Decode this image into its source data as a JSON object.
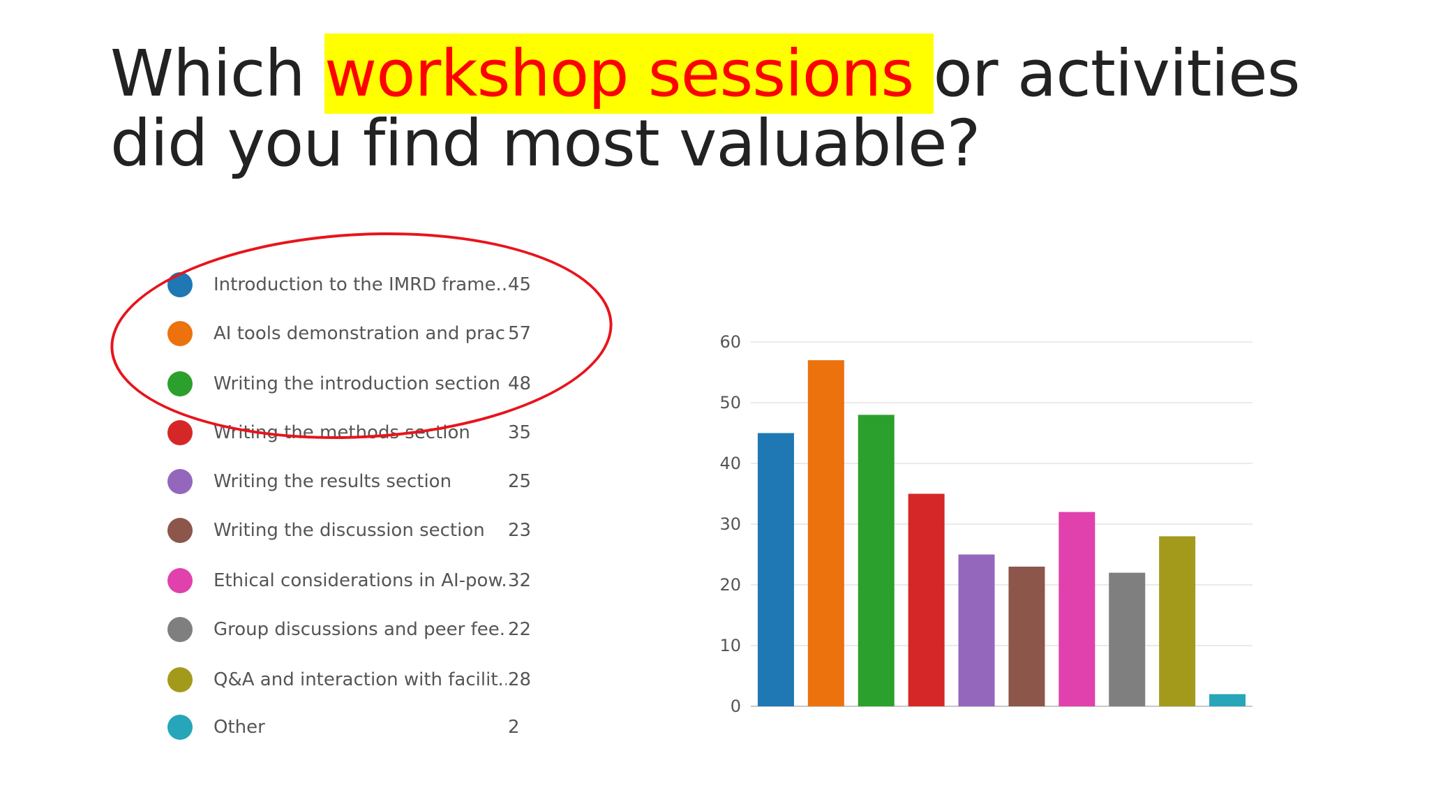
{
  "title": {
    "before": "Which ",
    "highlight": "workshop sessions ",
    "after": "or activities did you find most valuable?"
  },
  "colors": {
    "highlight_bg": "#ffff00",
    "highlight_text": "#ff0000",
    "annotation": "#e8141b"
  },
  "chart_data": {
    "type": "bar",
    "categories": [
      "Introduction to the IMRD frame...",
      "AI tools demonstration and prac...",
      "Writing the introduction section",
      "Writing the methods section",
      "Writing the results section",
      "Writing the discussion section",
      "Ethical considerations in AI-pow...",
      "Group discussions and peer fee...",
      "Q&A and interaction with facilit...",
      "Other"
    ],
    "values": [
      45,
      57,
      48,
      35,
      25,
      23,
      32,
      22,
      28,
      2
    ],
    "colors": [
      "#1f77b4",
      "#ec720d",
      "#2ca02c",
      "#d62728",
      "#9467bd",
      "#8c564b",
      "#e041ad",
      "#7f7f7f",
      "#a39a1c",
      "#26a6b8"
    ],
    "yticks": [
      0,
      10,
      20,
      30,
      40,
      50,
      60
    ],
    "ylim": [
      0,
      60
    ],
    "grid": true,
    "legend": "left"
  }
}
